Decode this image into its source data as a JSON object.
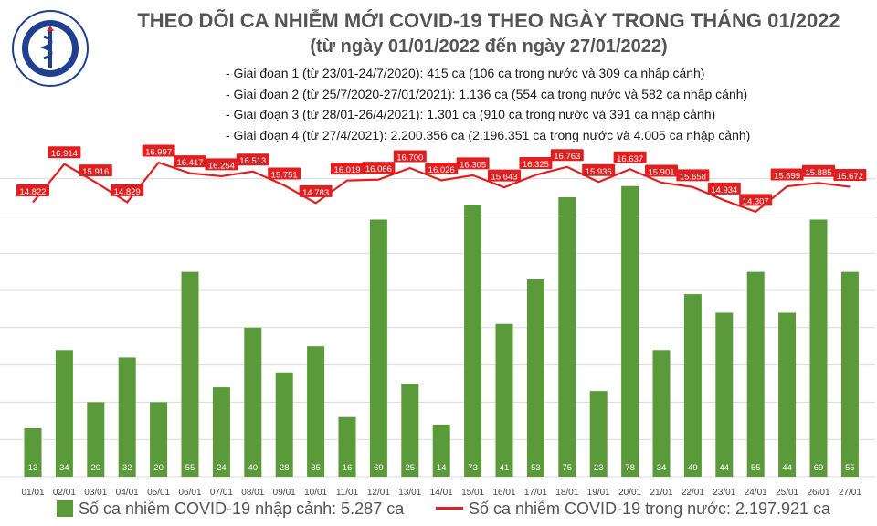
{
  "header": {
    "title": "THEO DÕI CA NHIỄM MỚI COVID-19 THEO NGÀY TRONG THÁNG 01/2022",
    "subtitle": "(từ ngày 01/01/2022 đến ngày 27/01/2022)",
    "stages": [
      "- Giai đoạn 1 (từ 23/01-24/7/2020): 415 ca (106 ca trong nước và 309 ca nhập cảnh)",
      "- Giai đoạn 2 (từ 25/7/2020-27/01/2021): 1.136 ca (554 ca trong nước và 582 ca nhập cảnh)",
      "- Giai đoạn 3 (từ 28/01-26/4/2021): 1.301 ca (910 ca trong nước và 391 ca nhập cảnh)",
      "- Giai đoạn 4 (từ 27/4/2021): 2.200.356 ca (2.196.351 ca trong nước và 4.005 ca nhập cảnh)"
    ]
  },
  "logo": {
    "top_text": "BỘ Y TẾ",
    "bottom_text": "MINISTRY OF HEALTH"
  },
  "legend": {
    "bar_label": "Số ca nhiễm COVID-19 nhập cảnh: 5.287 ca",
    "line_label": "Số ca nhiễm COVID-19 trong nước: 2.197.921 ca"
  },
  "colors": {
    "bar": "#5a9a3b",
    "line": "#e02020",
    "title": "#555555",
    "grid": "#d9d9d9"
  },
  "chart_data": {
    "type": "bar+line",
    "categories": [
      "01/01",
      "02/01",
      "03/01",
      "04/01",
      "05/01",
      "06/01",
      "07/01",
      "08/01",
      "09/01",
      "10/01",
      "11/01",
      "12/01",
      "13/01",
      "14/01",
      "15/01",
      "16/01",
      "17/01",
      "18/01",
      "19/01",
      "20/01",
      "21/01",
      "22/01",
      "23/01",
      "24/01",
      "25/01",
      "26/01",
      "27/01"
    ],
    "series": [
      {
        "name": "Số ca nhiễm COVID-19 nhập cảnh",
        "type": "bar",
        "values": [
          13,
          34,
          20,
          32,
          20,
          55,
          24,
          40,
          28,
          35,
          16,
          69,
          25,
          14,
          73,
          41,
          53,
          75,
          23,
          78,
          34,
          49,
          44,
          55,
          44,
          69,
          55
        ],
        "labels": [
          "13",
          "34",
          "20",
          "32",
          "20",
          "55",
          "24",
          "40",
          "28",
          "35",
          "16",
          "69",
          "25",
          "14",
          "73",
          "41",
          "53",
          "75",
          "23",
          "78",
          "34",
          "49",
          "44",
          "55",
          "44",
          "69",
          "55"
        ]
      },
      {
        "name": "Số ca nhiễm COVID-19 trong nước",
        "type": "line",
        "values": [
          14822,
          16914,
          15916,
          14829,
          16997,
          16417,
          16254,
          16513,
          15751,
          14783,
          16019,
          16066,
          16700,
          16026,
          16305,
          15643,
          16325,
          16763,
          15936,
          16637,
          15901,
          15658,
          14934,
          14307,
          15699,
          15885,
          15672
        ],
        "labels": [
          "14.822",
          "16.914",
          "15.916",
          "14.829",
          "16.997",
          "16.417",
          "16.254",
          "16.513",
          "15.751",
          "14.783",
          "16.019",
          "16.066",
          "16.700",
          "16.026",
          "16.305",
          "15.643",
          "16.325",
          "16.763",
          "15.936",
          "16.637",
          "15.901",
          "15.658",
          "14.934",
          "14.307",
          "15.699",
          "15.885",
          "15.672"
        ]
      }
    ],
    "grid": true
  }
}
